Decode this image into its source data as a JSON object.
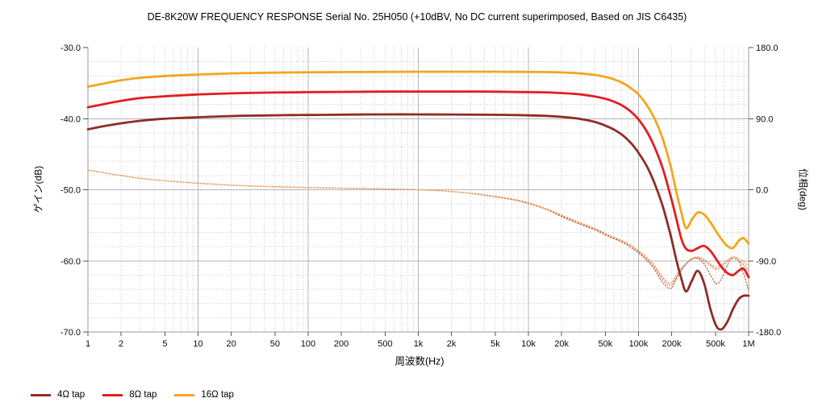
{
  "chart_data": {
    "type": "line",
    "title": "DE-8K20W FREQUENCY RESPONSE Serial No. 25H050 (+10dBV,  No DC current superimposed,  Based on JIS C6435)",
    "xlabel": "周波数(Hz)",
    "ylabel_left": "ゲイン(dB)",
    "ylabel_right": "位相(deg)",
    "x_scale": "log",
    "xlim": [
      1,
      1000000
    ],
    "ylim_left": [
      -70,
      -30
    ],
    "ylim_right": [
      -180,
      180
    ],
    "grid": {
      "major_color": "#b5b5b5",
      "minor_color": "#cbcbcb",
      "minor_style": "dotted",
      "axis_color": "#9b9b9b",
      "tick_color": "#555555"
    },
    "x_ticks": [
      {
        "v": 1,
        "label": "1"
      },
      {
        "v": 2,
        "label": "2"
      },
      {
        "v": 5,
        "label": "5"
      },
      {
        "v": 10,
        "label": "10"
      },
      {
        "v": 20,
        "label": "20"
      },
      {
        "v": 50,
        "label": "50"
      },
      {
        "v": 100,
        "label": "100"
      },
      {
        "v": 200,
        "label": "200"
      },
      {
        "v": 500,
        "label": "500"
      },
      {
        "v": 1000,
        "label": "1k"
      },
      {
        "v": 2000,
        "label": "2k"
      },
      {
        "v": 5000,
        "label": "5k"
      },
      {
        "v": 10000,
        "label": "10k"
      },
      {
        "v": 20000,
        "label": "20k"
      },
      {
        "v": 50000,
        "label": "50k"
      },
      {
        "v": 100000,
        "label": "100k"
      },
      {
        "v": 200000,
        "label": "200k"
      },
      {
        "v": 500000,
        "label": "500k"
      },
      {
        "v": 1000000,
        "label": "1M"
      }
    ],
    "y_left_ticks": [
      {
        "v": -30,
        "label": "-30.0"
      },
      {
        "v": -40,
        "label": "-40.0"
      },
      {
        "v": -50,
        "label": "-50.0"
      },
      {
        "v": -60,
        "label": "-60.0"
      },
      {
        "v": -70,
        "label": "-70.0"
      }
    ],
    "y_right_ticks": [
      {
        "v": 180,
        "label": "180.0"
      },
      {
        "v": 90,
        "label": "90.0"
      },
      {
        "v": 0,
        "label": "0.0"
      },
      {
        "v": -90,
        "label": "-90.0"
      },
      {
        "v": -180,
        "label": "-180.0"
      }
    ],
    "x": [
      1,
      1.4,
      2,
      3,
      4.5,
      7,
      10,
      15,
      25,
      40,
      70,
      120,
      250,
      500,
      1000,
      2000,
      4000,
      8000,
      14000,
      20000,
      30000,
      42000,
      55000,
      70000,
      85000,
      100000,
      120000,
      140000,
      165000,
      195000,
      220000,
      245000,
      270000,
      305000,
      345000,
      395000,
      450000,
      510000,
      570000,
      640000,
      720000,
      810000,
      900000,
      1000000
    ],
    "gain_series": [
      {
        "name": "4Ω tap",
        "color": "#8e2d27",
        "style": "solid",
        "axis": "left",
        "y": [
          -41.5,
          -41.05,
          -40.65,
          -40.3,
          -40.05,
          -39.9,
          -39.8,
          -39.7,
          -39.6,
          -39.55,
          -39.5,
          -39.47,
          -39.43,
          -39.4,
          -39.4,
          -39.42,
          -39.45,
          -39.5,
          -39.6,
          -39.75,
          -40.05,
          -40.55,
          -41.25,
          -42.2,
          -43.4,
          -44.8,
          -46.8,
          -49.1,
          -52.2,
          -56.3,
          -59.8,
          -62.5,
          -64.3,
          -62.8,
          -61.4,
          -63.2,
          -66.8,
          -69.2,
          -69.6,
          -68.6,
          -66.8,
          -65.4,
          -64.9,
          -64.9
        ]
      },
      {
        "name": "8Ω tap",
        "color": "#e01f22",
        "style": "solid",
        "axis": "left",
        "y": [
          -38.4,
          -37.95,
          -37.5,
          -37.1,
          -36.9,
          -36.72,
          -36.6,
          -36.5,
          -36.4,
          -36.35,
          -36.3,
          -36.27,
          -36.23,
          -36.2,
          -36.2,
          -36.2,
          -36.2,
          -36.25,
          -36.3,
          -36.4,
          -36.6,
          -36.95,
          -37.4,
          -38.1,
          -39.0,
          -40.1,
          -41.9,
          -44.0,
          -46.9,
          -50.8,
          -54.0,
          -56.9,
          -58.3,
          -58.6,
          -58.2,
          -57.9,
          -58.6,
          -59.8,
          -60.9,
          -61.7,
          -62.0,
          -61.4,
          -61.1,
          -62.3
        ]
      },
      {
        "name": "16Ω tap",
        "color": "#f2a61e",
        "style": "solid",
        "axis": "left",
        "y": [
          -35.5,
          -35.05,
          -34.6,
          -34.25,
          -34.05,
          -33.9,
          -33.8,
          -33.7,
          -33.6,
          -33.55,
          -33.5,
          -33.48,
          -33.45,
          -33.42,
          -33.4,
          -33.4,
          -33.4,
          -33.42,
          -33.45,
          -33.5,
          -33.65,
          -33.9,
          -34.3,
          -34.9,
          -35.7,
          -36.6,
          -38.2,
          -40.0,
          -42.7,
          -46.6,
          -50.2,
          -53.2,
          -55.4,
          -54.2,
          -53.2,
          -53.5,
          -54.6,
          -55.9,
          -57.0,
          -57.9,
          -58.2,
          -57.2,
          -56.8,
          -57.6
        ]
      }
    ],
    "phase_series": [
      {
        "name": "4Ω tap phase",
        "color": "#b06a55",
        "style": "dashed",
        "axis": "right",
        "y": [
          25,
          21.5,
          18,
          14.5,
          12,
          9.8,
          8.3,
          6.8,
          5.2,
          4.2,
          3.3,
          2.6,
          1.8,
          1.0,
          0.0,
          -2.2,
          -7,
          -14,
          -24,
          -34,
          -44,
          -52,
          -60,
          -66,
          -73,
          -80,
          -90,
          -101,
          -117,
          -125,
          -113,
          -102,
          -94,
          -88,
          -87,
          -94,
          -108,
          -119,
          -112,
          -96,
          -85,
          -90,
          -106,
          -128
        ]
      },
      {
        "name": "8Ω tap phase",
        "color": "#e4766b",
        "style": "dashed",
        "axis": "right",
        "y": [
          25,
          21.5,
          18,
          14.5,
          12,
          9.8,
          8.3,
          6.8,
          5.2,
          4.2,
          3.3,
          2.6,
          1.8,
          1.0,
          0.0,
          -2.2,
          -6.5,
          -13.5,
          -23.5,
          -33,
          -43,
          -51,
          -59,
          -65,
          -71,
          -78,
          -88,
          -98,
          -113,
          -121,
          -111,
          -101,
          -94,
          -88,
          -86,
          -90,
          -96,
          -101,
          -97,
          -91,
          -87,
          -90,
          -95,
          -103
        ]
      },
      {
        "name": "16Ω tap phase",
        "color": "#eca14f",
        "style": "dashed",
        "axis": "right",
        "y": [
          25,
          21.5,
          18,
          14.5,
          12,
          9.8,
          8.3,
          6.8,
          5.2,
          4.2,
          3.3,
          2.6,
          1.8,
          1.0,
          0.0,
          -2.2,
          -6.5,
          -13,
          -23,
          -32,
          -42,
          -50,
          -58,
          -64,
          -70,
          -77,
          -86,
          -96,
          -110,
          -118,
          -108,
          -99,
          -93,
          -87,
          -85,
          -88,
          -94,
          -98,
          -95,
          -89,
          -85,
          -87,
          -91,
          -97
        ]
      }
    ],
    "legend": {
      "entries": [
        "4Ω tap",
        "8Ω tap",
        "16Ω tap"
      ],
      "position": "bottom-left"
    }
  }
}
